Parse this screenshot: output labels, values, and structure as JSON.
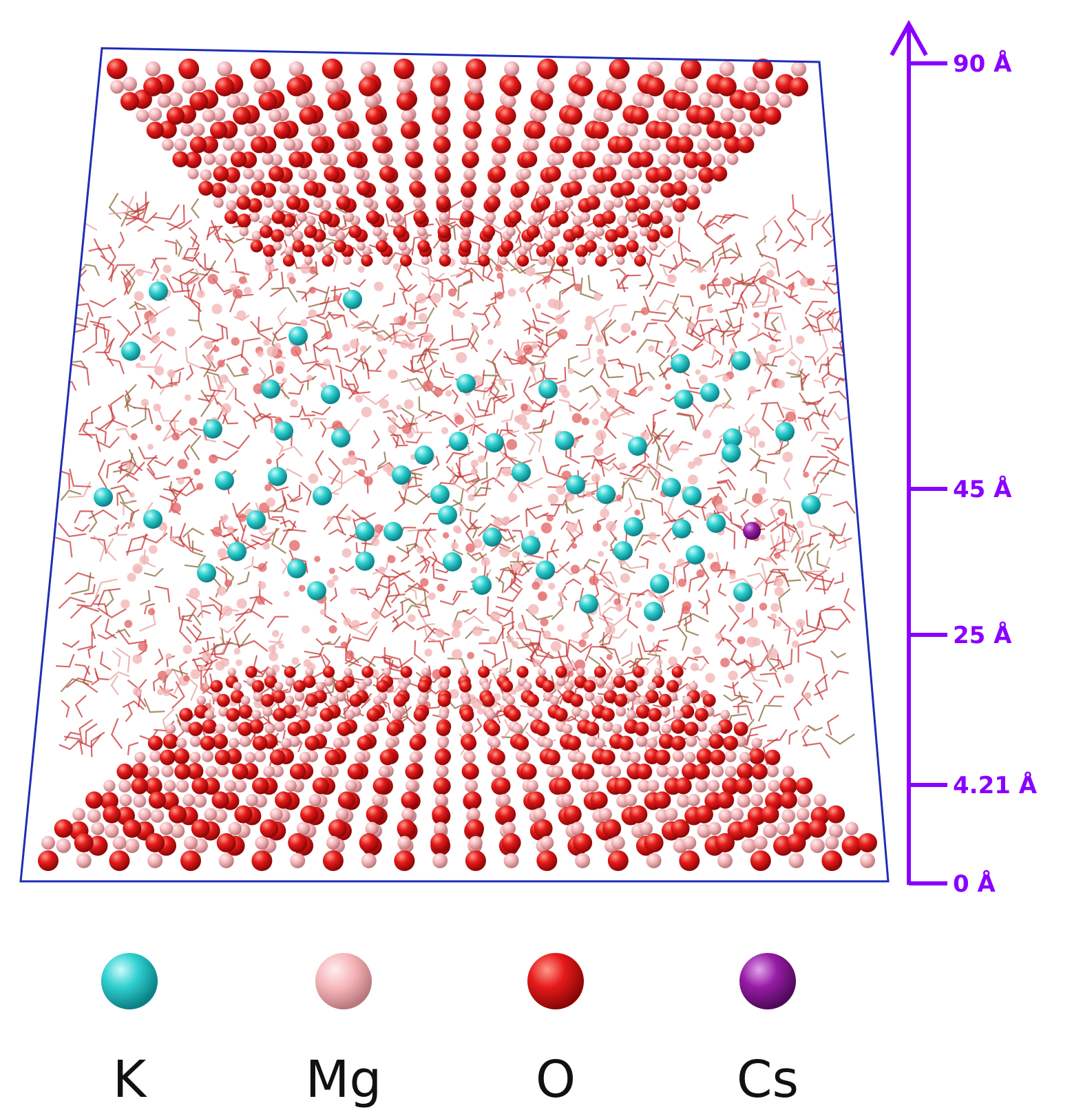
{
  "figure": {
    "scale_bar": {
      "color": "#8a00ff",
      "ticks": [
        {
          "label": "90 Å",
          "value": 90
        },
        {
          "label": "45 Å",
          "value": 45
        },
        {
          "label": "25 Å",
          "value": 25
        },
        {
          "label": "4.21 Å",
          "value": 4.21
        },
        {
          "label": "0 Å",
          "value": 0
        }
      ]
    },
    "box_edge_color": "#1f2db4",
    "legend": [
      {
        "label": "K",
        "color": "#1fc7c7",
        "icon": "k-atom-sphere"
      },
      {
        "label": "Mg",
        "color": "#f4b4b8",
        "icon": "mg-atom-sphere"
      },
      {
        "label": "O",
        "color": "#e01818",
        "icon": "o-atom-sphere"
      },
      {
        "label": "Cs",
        "color": "#8e1a9a",
        "icon": "cs-atom-sphere"
      }
    ]
  }
}
